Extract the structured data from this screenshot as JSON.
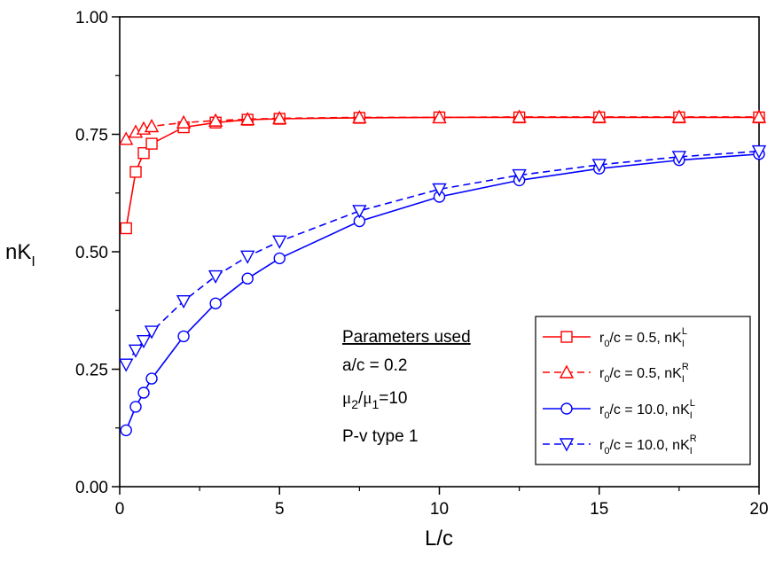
{
  "chart_data": {
    "type": "line",
    "xlabel": "L/c",
    "ylabel": "nK",
    "ylabel_sub": "I",
    "xlim": [
      0,
      20
    ],
    "ylim": [
      0,
      1.0
    ],
    "x_ticks": [
      0,
      5,
      10,
      15,
      20
    ],
    "x_tick_labels": [
      "0",
      "5",
      "10",
      "15",
      "20"
    ],
    "y_ticks": [
      0,
      0.25,
      0.5,
      0.75,
      1.0
    ],
    "y_tick_labels": [
      "0.00",
      "0.25",
      "0.50",
      "0.75",
      "1.00"
    ],
    "grid": false,
    "legend_position": "bottom-right",
    "series": [
      {
        "key": "r05_L",
        "legend": {
          "prefix": "r",
          "sub0": "0",
          "middle": "/c = 0.5,  nK",
          "sub": "I",
          "sup": "L"
        },
        "color": "#ff0000",
        "dash": "solid",
        "marker": "square",
        "x": [
          0.2,
          0.5,
          0.75,
          1,
          2,
          3,
          4,
          5,
          7.5,
          10,
          12.5,
          15,
          17.5,
          20
        ],
        "y": [
          0.55,
          0.67,
          0.71,
          0.73,
          0.765,
          0.775,
          0.781,
          0.783,
          0.785,
          0.786,
          0.786,
          0.786,
          0.786,
          0.786
        ]
      },
      {
        "key": "r05_R",
        "legend": {
          "prefix": "r",
          "sub0": "0",
          "middle": "/c = 0.5,  nK",
          "sub": "I",
          "sup": "R"
        },
        "color": "#ff0000",
        "dash": "dashed",
        "marker": "triangle-up",
        "x": [
          0.2,
          0.5,
          0.75,
          1,
          2,
          3,
          4,
          5,
          7.5,
          10,
          12.5,
          15,
          17.5,
          20
        ],
        "y": [
          0.74,
          0.755,
          0.762,
          0.767,
          0.775,
          0.779,
          0.782,
          0.784,
          0.786,
          0.786,
          0.787,
          0.787,
          0.787,
          0.787
        ]
      },
      {
        "key": "r10_L",
        "legend": {
          "prefix": "r",
          "sub0": "0",
          "middle": "/c = 10.0, nK",
          "sub": "I",
          "sup": "L"
        },
        "color": "#0000ff",
        "dash": "solid",
        "marker": "circle",
        "x": [
          0.2,
          0.5,
          0.75,
          1,
          2,
          3,
          4,
          5,
          7.5,
          10,
          12.5,
          15,
          17.5,
          20
        ],
        "y": [
          0.12,
          0.17,
          0.2,
          0.23,
          0.32,
          0.39,
          0.443,
          0.486,
          0.565,
          0.617,
          0.652,
          0.677,
          0.695,
          0.708
        ]
      },
      {
        "key": "r10_R",
        "legend": {
          "prefix": "r",
          "sub0": "0",
          "middle": "/c = 10.0, nK",
          "sub": "I",
          "sup": "R"
        },
        "color": "#0000ff",
        "dash": "dashed",
        "marker": "triangle-down",
        "x": [
          0.2,
          0.5,
          0.75,
          1,
          2,
          3,
          4,
          5,
          7.5,
          10,
          12.5,
          15,
          17.5,
          20
        ],
        "y": [
          0.26,
          0.29,
          0.31,
          0.33,
          0.395,
          0.448,
          0.49,
          0.522,
          0.587,
          0.633,
          0.663,
          0.685,
          0.702,
          0.714
        ]
      }
    ],
    "annotations": {
      "heading": "Parameters used",
      "line1": "a/c = 0.2",
      "line2": {
        "mu": "μ",
        "sub2": "2",
        "slash": "/",
        "sub1": "1",
        "rest": "=10"
      },
      "line3": "P-v type 1"
    }
  }
}
